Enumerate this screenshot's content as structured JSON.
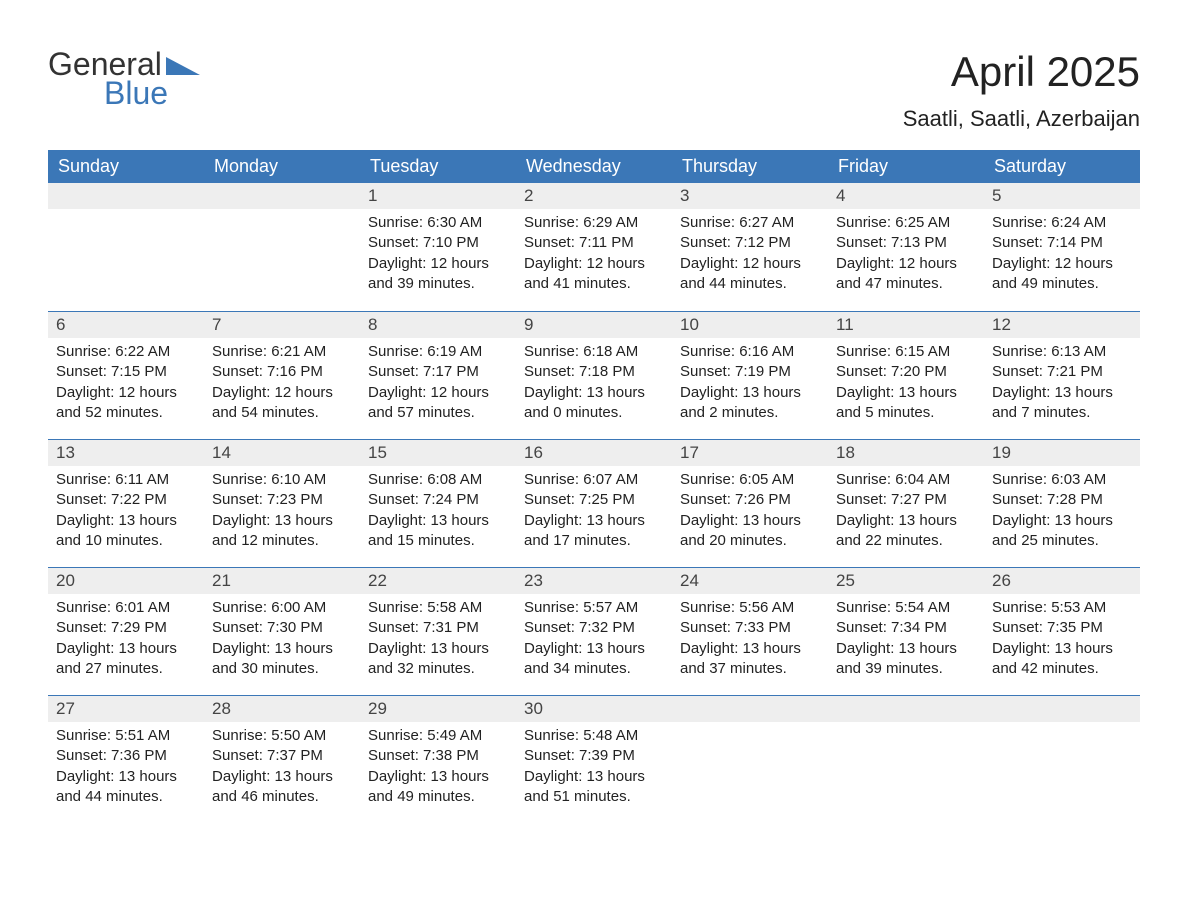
{
  "logo": {
    "word1": "General",
    "word2": "Blue",
    "word1_color": "#333333",
    "word2_color": "#3b77b7",
    "triangle_color": "#3b77b7"
  },
  "title": "April 2025",
  "location": "Saatli, Saatli, Azerbaijan",
  "colors": {
    "header_bg": "#3b77b7",
    "header_text": "#ffffff",
    "daynum_bg": "#eeeeee",
    "row_border": "#3b77b7",
    "page_bg": "#ffffff",
    "body_text": "#222222"
  },
  "fonts": {
    "title_size_pt": 32,
    "location_size_pt": 17,
    "dayheader_size_pt": 14,
    "daynum_size_pt": 13,
    "body_size_pt": 11
  },
  "day_headers": [
    "Sunday",
    "Monday",
    "Tuesday",
    "Wednesday",
    "Thursday",
    "Friday",
    "Saturday"
  ],
  "weeks": [
    [
      {
        "num": "",
        "sunrise": "",
        "sunset": "",
        "daylight1": "",
        "daylight2": ""
      },
      {
        "num": "",
        "sunrise": "",
        "sunset": "",
        "daylight1": "",
        "daylight2": ""
      },
      {
        "num": "1",
        "sunrise": "Sunrise: 6:30 AM",
        "sunset": "Sunset: 7:10 PM",
        "daylight1": "Daylight: 12 hours",
        "daylight2": "and 39 minutes."
      },
      {
        "num": "2",
        "sunrise": "Sunrise: 6:29 AM",
        "sunset": "Sunset: 7:11 PM",
        "daylight1": "Daylight: 12 hours",
        "daylight2": "and 41 minutes."
      },
      {
        "num": "3",
        "sunrise": "Sunrise: 6:27 AM",
        "sunset": "Sunset: 7:12 PM",
        "daylight1": "Daylight: 12 hours",
        "daylight2": "and 44 minutes."
      },
      {
        "num": "4",
        "sunrise": "Sunrise: 6:25 AM",
        "sunset": "Sunset: 7:13 PM",
        "daylight1": "Daylight: 12 hours",
        "daylight2": "and 47 minutes."
      },
      {
        "num": "5",
        "sunrise": "Sunrise: 6:24 AM",
        "sunset": "Sunset: 7:14 PM",
        "daylight1": "Daylight: 12 hours",
        "daylight2": "and 49 minutes."
      }
    ],
    [
      {
        "num": "6",
        "sunrise": "Sunrise: 6:22 AM",
        "sunset": "Sunset: 7:15 PM",
        "daylight1": "Daylight: 12 hours",
        "daylight2": "and 52 minutes."
      },
      {
        "num": "7",
        "sunrise": "Sunrise: 6:21 AM",
        "sunset": "Sunset: 7:16 PM",
        "daylight1": "Daylight: 12 hours",
        "daylight2": "and 54 minutes."
      },
      {
        "num": "8",
        "sunrise": "Sunrise: 6:19 AM",
        "sunset": "Sunset: 7:17 PM",
        "daylight1": "Daylight: 12 hours",
        "daylight2": "and 57 minutes."
      },
      {
        "num": "9",
        "sunrise": "Sunrise: 6:18 AM",
        "sunset": "Sunset: 7:18 PM",
        "daylight1": "Daylight: 13 hours",
        "daylight2": "and 0 minutes."
      },
      {
        "num": "10",
        "sunrise": "Sunrise: 6:16 AM",
        "sunset": "Sunset: 7:19 PM",
        "daylight1": "Daylight: 13 hours",
        "daylight2": "and 2 minutes."
      },
      {
        "num": "11",
        "sunrise": "Sunrise: 6:15 AM",
        "sunset": "Sunset: 7:20 PM",
        "daylight1": "Daylight: 13 hours",
        "daylight2": "and 5 minutes."
      },
      {
        "num": "12",
        "sunrise": "Sunrise: 6:13 AM",
        "sunset": "Sunset: 7:21 PM",
        "daylight1": "Daylight: 13 hours",
        "daylight2": "and 7 minutes."
      }
    ],
    [
      {
        "num": "13",
        "sunrise": "Sunrise: 6:11 AM",
        "sunset": "Sunset: 7:22 PM",
        "daylight1": "Daylight: 13 hours",
        "daylight2": "and 10 minutes."
      },
      {
        "num": "14",
        "sunrise": "Sunrise: 6:10 AM",
        "sunset": "Sunset: 7:23 PM",
        "daylight1": "Daylight: 13 hours",
        "daylight2": "and 12 minutes."
      },
      {
        "num": "15",
        "sunrise": "Sunrise: 6:08 AM",
        "sunset": "Sunset: 7:24 PM",
        "daylight1": "Daylight: 13 hours",
        "daylight2": "and 15 minutes."
      },
      {
        "num": "16",
        "sunrise": "Sunrise: 6:07 AM",
        "sunset": "Sunset: 7:25 PM",
        "daylight1": "Daylight: 13 hours",
        "daylight2": "and 17 minutes."
      },
      {
        "num": "17",
        "sunrise": "Sunrise: 6:05 AM",
        "sunset": "Sunset: 7:26 PM",
        "daylight1": "Daylight: 13 hours",
        "daylight2": "and 20 minutes."
      },
      {
        "num": "18",
        "sunrise": "Sunrise: 6:04 AM",
        "sunset": "Sunset: 7:27 PM",
        "daylight1": "Daylight: 13 hours",
        "daylight2": "and 22 minutes."
      },
      {
        "num": "19",
        "sunrise": "Sunrise: 6:03 AM",
        "sunset": "Sunset: 7:28 PM",
        "daylight1": "Daylight: 13 hours",
        "daylight2": "and 25 minutes."
      }
    ],
    [
      {
        "num": "20",
        "sunrise": "Sunrise: 6:01 AM",
        "sunset": "Sunset: 7:29 PM",
        "daylight1": "Daylight: 13 hours",
        "daylight2": "and 27 minutes."
      },
      {
        "num": "21",
        "sunrise": "Sunrise: 6:00 AM",
        "sunset": "Sunset: 7:30 PM",
        "daylight1": "Daylight: 13 hours",
        "daylight2": "and 30 minutes."
      },
      {
        "num": "22",
        "sunrise": "Sunrise: 5:58 AM",
        "sunset": "Sunset: 7:31 PM",
        "daylight1": "Daylight: 13 hours",
        "daylight2": "and 32 minutes."
      },
      {
        "num": "23",
        "sunrise": "Sunrise: 5:57 AM",
        "sunset": "Sunset: 7:32 PM",
        "daylight1": "Daylight: 13 hours",
        "daylight2": "and 34 minutes."
      },
      {
        "num": "24",
        "sunrise": "Sunrise: 5:56 AM",
        "sunset": "Sunset: 7:33 PM",
        "daylight1": "Daylight: 13 hours",
        "daylight2": "and 37 minutes."
      },
      {
        "num": "25",
        "sunrise": "Sunrise: 5:54 AM",
        "sunset": "Sunset: 7:34 PM",
        "daylight1": "Daylight: 13 hours",
        "daylight2": "and 39 minutes."
      },
      {
        "num": "26",
        "sunrise": "Sunrise: 5:53 AM",
        "sunset": "Sunset: 7:35 PM",
        "daylight1": "Daylight: 13 hours",
        "daylight2": "and 42 minutes."
      }
    ],
    [
      {
        "num": "27",
        "sunrise": "Sunrise: 5:51 AM",
        "sunset": "Sunset: 7:36 PM",
        "daylight1": "Daylight: 13 hours",
        "daylight2": "and 44 minutes."
      },
      {
        "num": "28",
        "sunrise": "Sunrise: 5:50 AM",
        "sunset": "Sunset: 7:37 PM",
        "daylight1": "Daylight: 13 hours",
        "daylight2": "and 46 minutes."
      },
      {
        "num": "29",
        "sunrise": "Sunrise: 5:49 AM",
        "sunset": "Sunset: 7:38 PM",
        "daylight1": "Daylight: 13 hours",
        "daylight2": "and 49 minutes."
      },
      {
        "num": "30",
        "sunrise": "Sunrise: 5:48 AM",
        "sunset": "Sunset: 7:39 PM",
        "daylight1": "Daylight: 13 hours",
        "daylight2": "and 51 minutes."
      },
      {
        "num": "",
        "sunrise": "",
        "sunset": "",
        "daylight1": "",
        "daylight2": ""
      },
      {
        "num": "",
        "sunrise": "",
        "sunset": "",
        "daylight1": "",
        "daylight2": ""
      },
      {
        "num": "",
        "sunrise": "",
        "sunset": "",
        "daylight1": "",
        "daylight2": ""
      }
    ]
  ]
}
